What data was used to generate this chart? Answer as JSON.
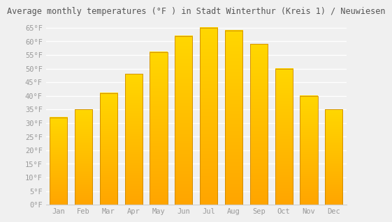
{
  "title": "Average monthly temperatures (°F ) in Stadt Winterthur (Kreis 1) / Neuwiesen",
  "months": [
    "Jan",
    "Feb",
    "Mar",
    "Apr",
    "May",
    "Jun",
    "Jul",
    "Aug",
    "Sep",
    "Oct",
    "Nov",
    "Dec"
  ],
  "values": [
    32,
    35,
    41,
    48,
    56,
    62,
    65,
    64,
    59,
    50,
    40,
    35
  ],
  "bar_color_top": "#FFD700",
  "bar_color_bottom": "#FFA500",
  "bar_edge_color": "#CC8800",
  "background_color": "#F0F0F0",
  "grid_color": "#FFFFFF",
  "ylim": [
    0,
    68
  ],
  "yticks": [
    0,
    5,
    10,
    15,
    20,
    25,
    30,
    35,
    40,
    45,
    50,
    55,
    60,
    65
  ],
  "ylabel_suffix": "°F",
  "title_fontsize": 8.5,
  "tick_fontsize": 7.5,
  "tick_font": "monospace",
  "tick_color": "#999999",
  "title_color": "#555555"
}
